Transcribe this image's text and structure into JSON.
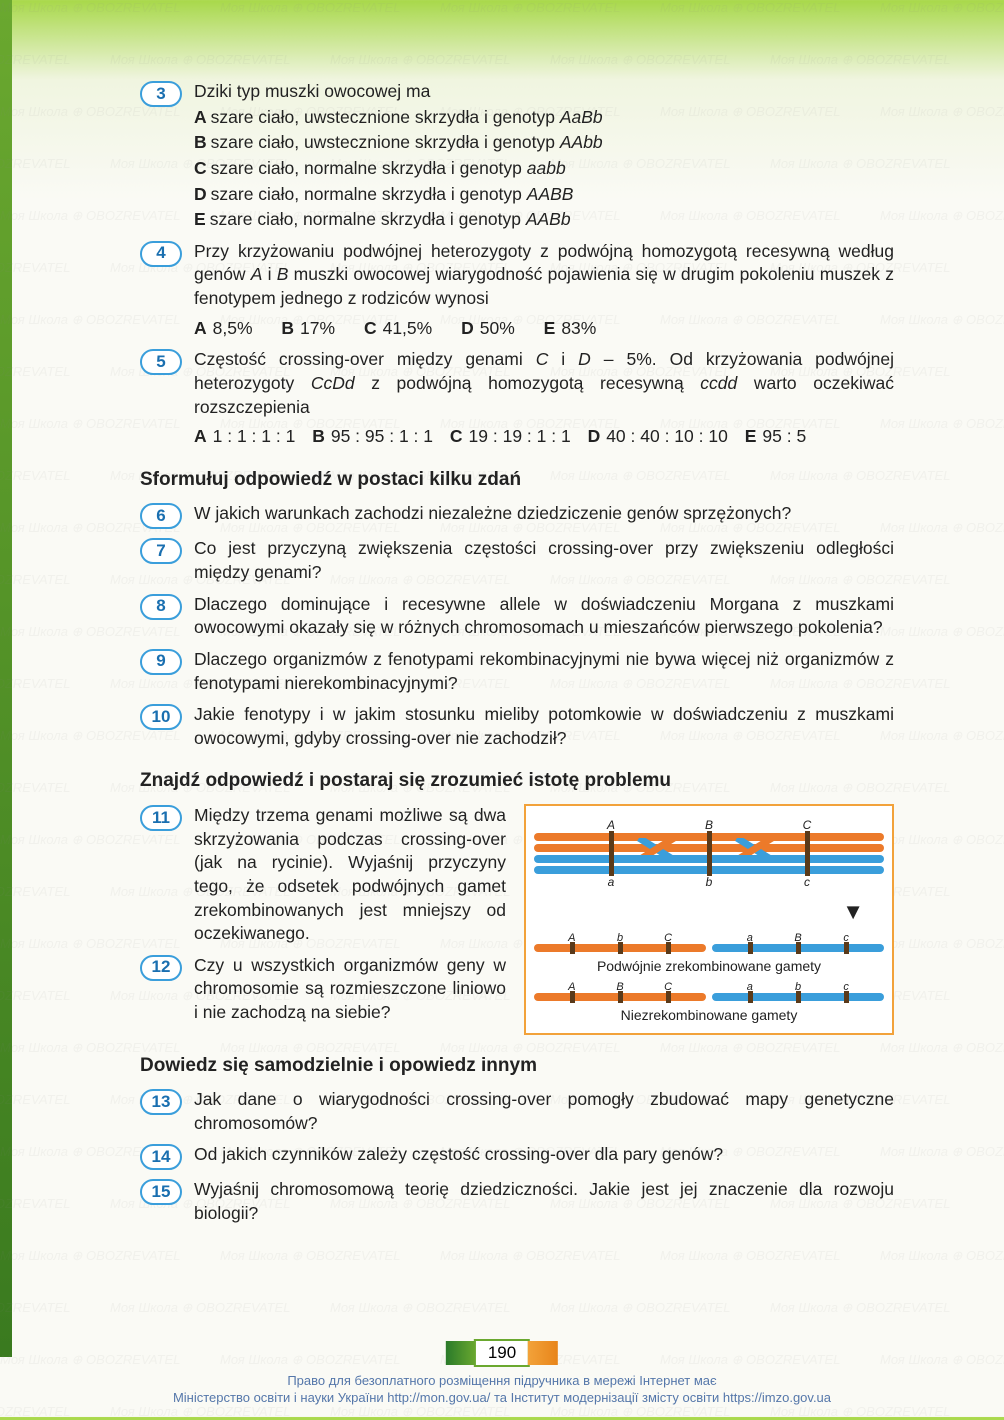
{
  "page_number": "190",
  "colors": {
    "badge_border": "#3a9edb",
    "badge_text": "#1a6fb0",
    "diagram_border": "#f2a23a",
    "orange": "#ec7a2a",
    "blue": "#3a9edb",
    "gene_mark": "#5a3a1a",
    "heading": "#222"
  },
  "questions": [
    {
      "num": "3",
      "text": "Dziki typ muszki owocowej ma",
      "options": [
        {
          "l": "A",
          "t": "szare ciało, uwstecznione skrzydła i genotyp ",
          "it": "AaBb"
        },
        {
          "l": "B",
          "t": "szare ciało, uwstecznione skrzydła i genotyp ",
          "it": "AAbb"
        },
        {
          "l": "C",
          "t": "szare ciało, normalne skrzydła i genotyp ",
          "it": "aabb"
        },
        {
          "l": "D",
          "t": "szare ciało, normalne skrzydła i genotyp ",
          "it": "AABB"
        },
        {
          "l": "E",
          "t": "szare ciało, normalne skrzydła i genotyp ",
          "it": "AABb"
        }
      ]
    },
    {
      "num": "4",
      "text_parts": [
        "Przy krzyżowaniu podwójnej heterozygoty z podwójną homozygotą recesywną według genów ",
        "A",
        " i ",
        "B",
        " muszki owocowej wiarygodność pojawienia się w drugim pokoleniu muszek z fenotypem jednego z rodziców wynosi"
      ],
      "inline_options": [
        {
          "l": "A",
          "t": "8,5%"
        },
        {
          "l": "B",
          "t": "17%"
        },
        {
          "l": "C",
          "t": "41,5%"
        },
        {
          "l": "D",
          "t": "50%"
        },
        {
          "l": "E",
          "t": "83%"
        }
      ]
    },
    {
      "num": "5",
      "text_parts": [
        "Częstość crossing-over między genami ",
        "C",
        " i ",
        "D",
        " – 5%. Od krzyżowania podwójnej heterozygoty ",
        "CcDd",
        " z podwójną homozygotą recesywną ",
        "ccdd",
        " warto oczekiwać rozszczepienia"
      ],
      "inline_options": [
        {
          "l": "A",
          "t": "1 : 1 : 1 : 1"
        },
        {
          "l": "B",
          "t": "95 : 95 : 1 : 1"
        },
        {
          "l": "C",
          "t": "19 : 19 : 1 : 1"
        },
        {
          "l": "D",
          "t": "40 : 40 : 10 : 10"
        },
        {
          "l": "E",
          "t": "95 : 5"
        }
      ]
    }
  ],
  "section1_heading": "Sformułuj odpowiedź w postaci kilku zdań",
  "section1_items": [
    {
      "num": "6",
      "text": "W jakich warunkach zachodzi niezależne dziedziczenie genów sprzężonych?"
    },
    {
      "num": "7",
      "text": "Co jest przyczyną zwiększenia częstości crossing-over przy zwiększeniu odległości między genami?"
    },
    {
      "num": "8",
      "text": "Dlaczego dominujące i recesywne allele w doświadczeniu Morgana z muszkami owocowymi okazały się w różnych chromosomach u mieszańców pierwszego pokolenia?"
    },
    {
      "num": "9",
      "text": "Dlaczego organizmów z fenotypami rekombinacyjnymi nie bywa więcej niż organizmów z fenotypami nierekombinacyjnymi?"
    },
    {
      "num": "10",
      "text": "Jakie fenotypy i w jakim stosunku mieliby potomkowie w doświadczeniu z muszkami owocowymi, gdyby crossing-over nie zachodził?"
    }
  ],
  "section2_heading": "Znajdź odpowiedź i postaraj się zrozumieć istotę problemu",
  "section2_items": [
    {
      "num": "11",
      "text": "Między trzema genami możliwe są dwa skrzyżowania podczas crossing-over (jak na rycinie). Wyjaśnij przyczyny tego, że odsetek podwójnych gamet zrekombinowanych jest mniejszy od oczekiwanego."
    },
    {
      "num": "12",
      "text": "Czy u wszystkich organizmów geny w chromosomie są rozmieszczone liniowo i nie zachodzą na siebie?"
    }
  ],
  "section3_heading": "Dowiedz się samodzielnie i opowiedz innym",
  "section3_items": [
    {
      "num": "13",
      "text": "Jak dane o wiarygodności crossing-over pomogły zbudować mapy genetyczne chromosomów?"
    },
    {
      "num": "14",
      "text": "Od jakich czynników zależy częstość crossing-over dla pary genów?"
    },
    {
      "num": "15",
      "text": "Wyjaśnij chromosomową teorię dziedziczności. Jakie jest jej znaczenie dla rozwoju biologii?"
    }
  ],
  "diagram": {
    "top_labels": [
      "A",
      "B",
      "C"
    ],
    "mid_labels_upper": [
      "A",
      "B",
      "C"
    ],
    "mid_labels_lower": [
      "a",
      "b",
      "c"
    ],
    "bottom_labels": [
      "a",
      "b",
      "c"
    ],
    "result1": {
      "left_labels": [
        "A",
        "b",
        "C"
      ],
      "right_labels": [
        "a",
        "B",
        "c"
      ],
      "caption": "Podwójnie zrekombinowane gamety"
    },
    "result2": {
      "left_labels": [
        "A",
        "B",
        "C"
      ],
      "right_labels": [
        "a",
        "b",
        "c"
      ],
      "caption": "Niezrekombinowane gamety"
    },
    "gene_positions_pct": [
      22,
      50,
      78
    ]
  },
  "footer": {
    "line1": "Право для безоплатного розміщення підручника в мережі Інтернет має",
    "line2": "Міністерство освіти і науки України http://mon.gov.ua/ та Інститут модернізації змісту освіти https://imzo.gov.ua"
  },
  "watermark": "Моя Школа ⊕ OBOZREVATEL"
}
